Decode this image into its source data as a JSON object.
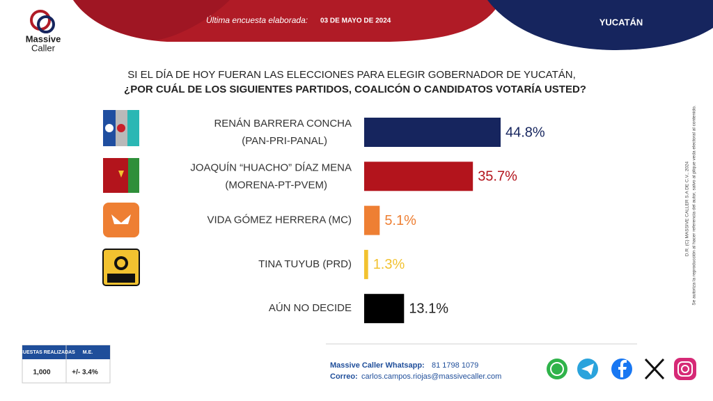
{
  "header": {
    "brand_top": "Massive",
    "brand_bottom": "Caller",
    "survey_label": "Última encuesta elaborada:",
    "survey_date": "03 DE MAYO DE 2024",
    "region": "YUCATÁN"
  },
  "chart_data": {
    "type": "bar",
    "orientation": "horizontal",
    "title": "SI EL DÍA DE HOY FUERAN LAS ELECCIONES PARA ELEGIR GOBERNADOR DE YUCATÁN,",
    "subtitle": "¿POR CUÁL DE LOS SIGUIENTES PARTIDOS, COALICÓN  O CANDIDATOS VOTARÍA USTED?",
    "categories": [
      "RENÁN BARRERA CONCHA",
      "JOAQUÍN “HUACHO” DÍAZ MENA",
      "VIDA GÓMEZ HERRERA (MC)",
      "TINA TUYUB (PRD)",
      "AÚN NO DECIDE"
    ],
    "category_parties": [
      "(PAN-PRI-PANAL)",
      "(MORENA-PT-PVEM)",
      null,
      null,
      null
    ],
    "values": [
      44.8,
      35.7,
      5.1,
      1.3,
      13.1
    ],
    "value_labels": [
      "44.8%",
      "35.7%",
      "5.1%",
      "1.3%",
      "13.1%"
    ],
    "colors": [
      "#16255e",
      "#b3141c",
      "#ee7f33",
      "#f2c230",
      "#000000"
    ]
  },
  "survey_table": {
    "headers": [
      "ENCUESTAS REALIZADAS",
      "M.E."
    ],
    "row": [
      "1,000",
      "+/- 3.4%"
    ]
  },
  "contact": {
    "whatsapp_label": "Massive Caller Whatsapp:",
    "whatsapp": "81 1798 1079",
    "email_label": "Correo:",
    "email": "carlos.campos.riojas@massivecaller.com"
  },
  "side_notes": [
    "D.R. (C) MASSIVE CALLER S.A DE C.V., 2024",
    "Se autoriza la reproducción al hacer referencia del autor, salvo al plique veda electoral al contenido."
  ]
}
